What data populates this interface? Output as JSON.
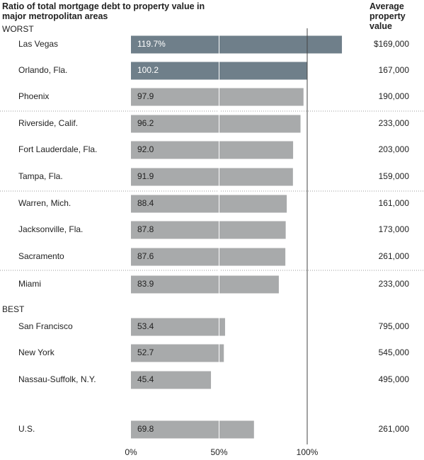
{
  "chart_data": {
    "type": "bar",
    "title": "Ratio of total mortgage debt to property value in major metropolitan areas",
    "column_header": "Average property value",
    "section_labels": [
      "WORST",
      "BEST"
    ],
    "categories": [
      "Las Vegas",
      "Orlando, Fla.",
      "Phoenix",
      "Riverside, Calif.",
      "Fort Lauderdale, Fla.",
      "Tampa, Fla.",
      "Warren, Mich.",
      "Jacksonville, Fla.",
      "Sacramento",
      "Miami",
      "San Francisco",
      "New York",
      "Nassau-Suffolk, N.Y.",
      "U.S."
    ],
    "values": [
      119.7,
      100.2,
      97.9,
      96.2,
      92.0,
      91.9,
      88.4,
      87.8,
      87.6,
      83.9,
      53.4,
      52.7,
      45.4,
      69.8
    ],
    "value_labels": [
      "119.7%",
      "100.2",
      "97.9",
      "96.2",
      "92.0",
      "91.9",
      "88.4",
      "87.8",
      "87.6",
      "83.9",
      "53.4",
      "52.7",
      "45.4",
      "69.8"
    ],
    "colors": [
      "#6f7f8a",
      "#6f7f8a",
      "#a8aaab",
      "#a8aaab",
      "#a8aaab",
      "#a8aaab",
      "#a8aaab",
      "#a8aaab",
      "#a8aaab",
      "#a8aaab",
      "#a8aaab",
      "#a8aaab",
      "#a8aaab",
      "#a8aaab"
    ],
    "average_property_values": [
      "$169,000",
      "167,000",
      "190,000",
      "233,000",
      "203,000",
      "159,000",
      "161,000",
      "173,000",
      "261,000",
      "233,000",
      "795,000",
      "545,000",
      "495,000",
      "261,000"
    ],
    "xlim": [
      0,
      100
    ],
    "xticks": [
      {
        "value": 0,
        "label": "0%"
      },
      {
        "value": 50,
        "label": "50%"
      },
      {
        "value": 100,
        "label": "100%"
      }
    ]
  }
}
